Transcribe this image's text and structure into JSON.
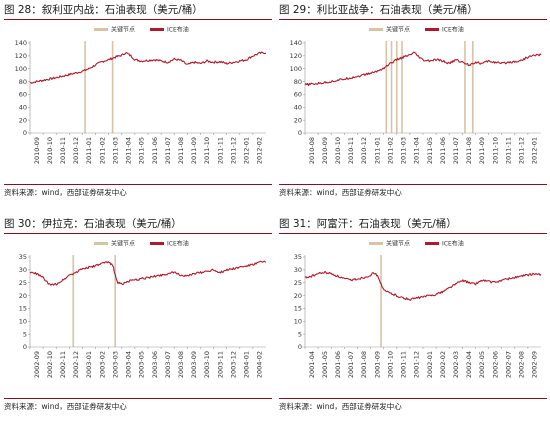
{
  "source_label": "资料来源：wind，西部证券研发中心",
  "legend": {
    "key_point": "关键节点",
    "ice_oil": "ICE布油"
  },
  "colors": {
    "line": "#b0192b",
    "key_bar": "#d8c3a5",
    "rule": "#8c0f1e",
    "axis": "#999999"
  },
  "chart_data": [
    {
      "type": "line",
      "title": "图 28：叙利亚内战：石油表现（美元/桶）",
      "series": [
        {
          "name": "ICE布油"
        }
      ],
      "ylim": [
        0,
        140
      ],
      "yticks": [
        0,
        20,
        40,
        60,
        80,
        100,
        120,
        140
      ],
      "ylabels": [
        "0",
        "20",
        "40",
        "60",
        "80",
        "100",
        "120",
        "140"
      ],
      "xlabels": [
        "2010-09",
        "2010-10",
        "2010-11",
        "2010-12",
        "2011-01",
        "2011-02",
        "2011-03",
        "2011-04",
        "2011-05",
        "2011-06",
        "2011-07",
        "2011-08",
        "2011-09",
        "2011-10",
        "2011-11",
        "2011-12",
        "2012-01",
        "2012-02"
      ],
      "key_points": [
        4.2,
        6.3
      ],
      "anchors": [
        [
          0,
          78
        ],
        [
          1,
          82
        ],
        [
          2,
          86
        ],
        [
          3,
          91
        ],
        [
          4,
          96
        ],
        [
          4.5,
          100
        ],
        [
          5,
          106
        ],
        [
          5.5,
          111
        ],
        [
          6,
          114
        ],
        [
          6.5,
          118
        ],
        [
          7,
          121
        ],
        [
          7.3,
          125
        ],
        [
          7.7,
          120
        ],
        [
          8,
          114
        ],
        [
          8.5,
          112
        ],
        [
          9,
          113
        ],
        [
          9.5,
          114
        ],
        [
          10,
          112
        ],
        [
          10.5,
          110
        ],
        [
          11,
          115
        ],
        [
          11.5,
          113
        ],
        [
          12,
          106
        ],
        [
          12.5,
          110
        ],
        [
          13,
          108
        ],
        [
          13.5,
          112
        ],
        [
          14,
          110
        ],
        [
          14.5,
          111
        ],
        [
          15,
          108
        ],
        [
          15.5,
          110
        ],
        [
          16,
          112
        ],
        [
          16.5,
          114
        ],
        [
          17,
          120
        ],
        [
          17.5,
          124
        ],
        [
          18,
          125
        ]
      ]
    },
    {
      "type": "line",
      "title": "图 29：利比亚战争：石油表现（美元/桶）",
      "series": [
        {
          "name": "ICE布油"
        }
      ],
      "ylim": [
        0,
        140
      ],
      "yticks": [
        0,
        20,
        40,
        60,
        80,
        100,
        120,
        140
      ],
      "ylabels": [
        "0",
        "20",
        "40",
        "60",
        "80",
        "100",
        "120",
        "140"
      ],
      "xlabels": [
        "2010-08",
        "2010-09",
        "2010-10",
        "2010-11",
        "2010-12",
        "2011-01",
        "2011-02",
        "2011-03",
        "2011-04",
        "2011-05",
        "2011-06",
        "2011-07",
        "2011-08",
        "2011-09",
        "2011-10",
        "2011-11",
        "2011-12",
        "2012-01"
      ],
      "key_points": [
        6.2,
        6.6,
        7.0,
        7.4,
        12.2,
        12.8
      ],
      "anchors": [
        [
          0,
          75
        ],
        [
          1,
          77
        ],
        [
          2,
          80
        ],
        [
          3,
          84
        ],
        [
          4,
          88
        ],
        [
          5,
          93
        ],
        [
          5.5,
          96
        ],
        [
          6,
          101
        ],
        [
          6.5,
          108
        ],
        [
          7,
          114
        ],
        [
          7.5,
          118
        ],
        [
          8,
          121
        ],
        [
          8.3,
          125
        ],
        [
          8.7,
          118
        ],
        [
          9,
          113
        ],
        [
          9.5,
          112
        ],
        [
          10,
          114
        ],
        [
          10.5,
          112
        ],
        [
          11,
          108
        ],
        [
          11.5,
          114
        ],
        [
          12,
          110
        ],
        [
          12.5,
          106
        ],
        [
          13,
          110
        ],
        [
          13.5,
          108
        ],
        [
          14,
          112
        ],
        [
          14.5,
          110
        ],
        [
          15,
          108
        ],
        [
          15.5,
          110
        ],
        [
          16,
          111
        ],
        [
          16.5,
          113
        ],
        [
          17,
          118
        ],
        [
          17.5,
          121
        ],
        [
          18,
          122
        ]
      ]
    },
    {
      "type": "line",
      "title": "图 30：伊拉克：石油表现（美元/桶）",
      "series": [
        {
          "name": "ICE布油"
        }
      ],
      "ylim": [
        0,
        35
      ],
      "yticks": [
        0,
        5,
        10,
        15,
        20,
        25,
        30,
        35
      ],
      "ylabels": [
        "0",
        "5",
        "10",
        "15",
        "20",
        "25",
        "30",
        "35"
      ],
      "xlabels": [
        "2002-09",
        "2002-10",
        "2002-11",
        "2002-12",
        "2003-01",
        "2003-02",
        "2003-03",
        "2003-04",
        "2003-05",
        "2003-06",
        "2003-07",
        "2003-08",
        "2003-09",
        "2003-10",
        "2003-11",
        "2003-12",
        "2004-01",
        "2004-02"
      ],
      "key_points": [
        3.3,
        6.5
      ],
      "anchors": [
        [
          0,
          29
        ],
        [
          0.5,
          28.5
        ],
        [
          1,
          27
        ],
        [
          1.5,
          24
        ],
        [
          2,
          24.5
        ],
        [
          2.5,
          26
        ],
        [
          3,
          28
        ],
        [
          3.5,
          29
        ],
        [
          4,
          30.5
        ],
        [
          4.5,
          31
        ],
        [
          5,
          31.5
        ],
        [
          5.5,
          32.5
        ],
        [
          6,
          33
        ],
        [
          6.3,
          32
        ],
        [
          6.5,
          28
        ],
        [
          6.7,
          25
        ],
        [
          7,
          24.5
        ],
        [
          7.5,
          25.5
        ],
        [
          8,
          26
        ],
        [
          8.5,
          26.5
        ],
        [
          9,
          27
        ],
        [
          9.5,
          27.5
        ],
        [
          10,
          28
        ],
        [
          10.5,
          28.5
        ],
        [
          11,
          29
        ],
        [
          11.5,
          28
        ],
        [
          12,
          27.5
        ],
        [
          12.5,
          28.5
        ],
        [
          13,
          29
        ],
        [
          13.5,
          29.5
        ],
        [
          14,
          30
        ],
        [
          14.5,
          29
        ],
        [
          15,
          30
        ],
        [
          15.5,
          30.5
        ],
        [
          16,
          31
        ],
        [
          16.5,
          31.5
        ],
        [
          17,
          32
        ],
        [
          17.5,
          33
        ],
        [
          18,
          33
        ]
      ]
    },
    {
      "type": "line",
      "title": "图 31：阿富汗：石油表现（美元/桶）",
      "series": [
        {
          "name": "ICE布油"
        }
      ],
      "ylim": [
        0,
        35
      ],
      "yticks": [
        0,
        5,
        10,
        15,
        20,
        25,
        30,
        35
      ],
      "ylabels": [
        "0",
        "5",
        "10",
        "15",
        "20",
        "25",
        "30",
        "35"
      ],
      "xlabels": [
        "2001-04",
        "2001-05",
        "2001-06",
        "2001-07",
        "2001-08",
        "2001-09",
        "2001-10",
        "2001-11",
        "2001-12",
        "2002-01",
        "2002-02",
        "2002-03",
        "2002-04",
        "2002-05",
        "2002-06",
        "2002-07",
        "2002-08",
        "2002-09"
      ],
      "key_points": [
        5.8
      ],
      "anchors": [
        [
          0,
          27
        ],
        [
          0.5,
          27.5
        ],
        [
          1,
          28.5
        ],
        [
          1.5,
          29
        ],
        [
          2,
          28.5
        ],
        [
          2.5,
          27.5
        ],
        [
          3,
          26.5
        ],
        [
          3.5,
          26
        ],
        [
          4,
          26.5
        ],
        [
          4.5,
          27
        ],
        [
          5,
          28
        ],
        [
          5.3,
          29
        ],
        [
          5.6,
          27
        ],
        [
          6,
          22
        ],
        [
          6.5,
          21
        ],
        [
          7,
          20
        ],
        [
          7.5,
          19
        ],
        [
          8,
          18.5
        ],
        [
          8.5,
          19
        ],
        [
          9,
          19.5
        ],
        [
          9.5,
          20
        ],
        [
          10,
          20.5
        ],
        [
          10.5,
          21.5
        ],
        [
          11,
          23
        ],
        [
          11.5,
          24.5
        ],
        [
          12,
          26
        ],
        [
          12.5,
          25
        ],
        [
          13,
          24.5
        ],
        [
          13.5,
          26
        ],
        [
          14,
          25.5
        ],
        [
          14.5,
          25
        ],
        [
          15,
          26
        ],
        [
          15.5,
          26.5
        ],
        [
          16,
          27
        ],
        [
          16.5,
          27.5
        ],
        [
          17,
          28
        ],
        [
          17.5,
          28.5
        ],
        [
          18,
          28
        ]
      ]
    }
  ]
}
